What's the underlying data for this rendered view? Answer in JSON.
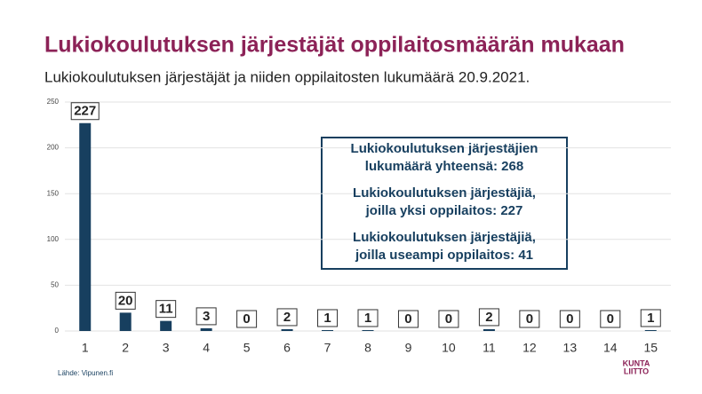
{
  "chart_data": {
    "type": "bar",
    "title": "Lukiokoulutuksen järjestäjät oppilaitosmäärän mukaan",
    "subtitle": "Lukiokoulutuksen järjestäjät ja niiden oppilaitosten lukumäärä 20.9.2021.",
    "categories": [
      "1",
      "2",
      "3",
      "4",
      "5",
      "6",
      "7",
      "8",
      "9",
      "10",
      "11",
      "12",
      "13",
      "14",
      "15"
    ],
    "values": [
      227,
      20,
      11,
      3,
      0,
      2,
      1,
      1,
      0,
      0,
      2,
      0,
      0,
      0,
      1
    ],
    "color": "#173f5f",
    "ylim": [
      0,
      250
    ],
    "yticks": [
      0,
      50,
      100,
      150,
      200,
      250
    ],
    "grid": true,
    "annotations": [
      [
        "Lukiokoulutuksen järjestäjien",
        "lukumäärä yhteensä: 268"
      ],
      [
        "Lukiokoulutuksen järjestäjiä,",
        "joilla yksi oppilaitos: 227"
      ],
      [
        "Lukiokoulutuksen järjestäjiä,",
        "joilla useampi oppilaitos: 41"
      ]
    ],
    "source": "Lähde: Vipunen.fi",
    "logo": [
      "KUNTA",
      "LIITTO"
    ]
  }
}
